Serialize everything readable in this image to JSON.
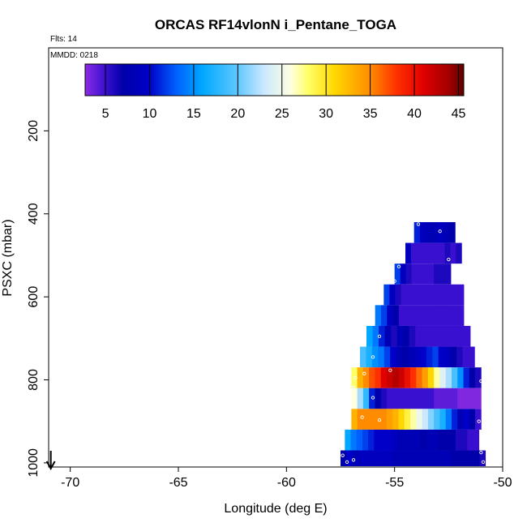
{
  "chart_data": {
    "type": "heatmap",
    "title": "ORCAS RF14vlonN i_Pentane_TOGA",
    "flights_label": "Flts: 14",
    "date_label": "MMDD: 0218",
    "xlabel": "Longitude (deg E)",
    "ylabel": "PSXC (mbar)",
    "xlim": [
      -71,
      -50
    ],
    "ylim": [
      1010,
      0
    ],
    "x_ticks": [
      -70,
      -65,
      -60,
      -55,
      -50
    ],
    "x_tick_labels": [
      "-70",
      "-65",
      "-60",
      "-55",
      "-50"
    ],
    "y_ticks": [
      200,
      400,
      600,
      800,
      1000
    ],
    "y_tick_labels": [
      "200",
      "400",
      "600",
      "800",
      "1000"
    ],
    "colorbar": {
      "min": 2.7,
      "max": 45.6,
      "ticks": [
        5,
        10,
        15,
        20,
        25,
        30,
        35,
        40,
        45
      ],
      "tick_labels": [
        "5",
        "10",
        "15",
        "20",
        "25",
        "30",
        "35",
        "40",
        "45"
      ],
      "stops": [
        {
          "v": 2.7,
          "c": "#8a2be2"
        },
        {
          "v": 5,
          "c": "#3a10d0"
        },
        {
          "v": 7,
          "c": "#0000aa"
        },
        {
          "v": 10,
          "c": "#0000c8"
        },
        {
          "v": 13,
          "c": "#0060ff"
        },
        {
          "v": 16,
          "c": "#00a8ff"
        },
        {
          "v": 20,
          "c": "#60c8ff"
        },
        {
          "v": 23,
          "c": "#cce8ff"
        },
        {
          "v": 26,
          "c": "#ffffe0"
        },
        {
          "v": 28,
          "c": "#ffff66"
        },
        {
          "v": 31,
          "c": "#ffd700"
        },
        {
          "v": 35,
          "c": "#ff8c00"
        },
        {
          "v": 38,
          "c": "#ff3000"
        },
        {
          "v": 41,
          "c": "#e00000"
        },
        {
          "v": 44,
          "c": "#a00000"
        },
        {
          "v": 45.6,
          "c": "#5a0000"
        }
      ]
    },
    "arrow_longitude": -70.9,
    "rows": [
      {
        "p_top": 420,
        "p_bot": 470,
        "lon_start": -54.1,
        "lon_end": -52.2,
        "values": [
          11,
          9,
          8,
          8,
          9,
          8,
          7
        ]
      },
      {
        "p_top": 470,
        "p_bot": 520,
        "lon_start": -54.5,
        "lon_end": -51.9,
        "values": [
          9,
          5,
          5,
          5,
          5,
          5,
          5,
          6,
          5,
          6
        ]
      },
      {
        "p_top": 520,
        "p_bot": 570,
        "lon_start": -55.0,
        "lon_end": -52.4,
        "values": [
          12,
          9,
          6,
          5,
          5,
          5,
          5,
          6,
          6,
          6
        ]
      },
      {
        "p_top": 570,
        "p_bot": 620,
        "lon_start": -55.5,
        "lon_end": -51.8,
        "values": [
          12,
          9,
          6,
          5,
          5,
          5,
          5,
          5,
          5,
          5,
          5,
          5,
          5,
          5
        ]
      },
      {
        "p_top": 620,
        "p_bot": 670,
        "lon_start": -55.9,
        "lon_end": -51.8,
        "values": [
          14,
          12,
          9,
          7,
          5,
          5,
          5,
          5,
          5,
          5,
          5,
          5,
          5,
          5,
          5
        ]
      },
      {
        "p_top": 670,
        "p_bot": 720,
        "lon_start": -56.3,
        "lon_end": -51.5,
        "values": [
          16,
          14,
          11,
          8,
          6,
          8,
          7,
          6,
          5,
          5,
          5,
          5,
          5,
          5,
          5,
          5,
          5
        ]
      },
      {
        "p_top": 720,
        "p_bot": 770,
        "lon_start": -56.6,
        "lon_end": -51.3,
        "values": [
          19,
          17,
          15,
          14,
          12,
          10,
          8,
          7,
          8,
          9,
          10,
          11,
          12,
          10,
          9,
          7,
          6,
          5,
          5
        ]
      },
      {
        "p_top": 770,
        "p_bot": 820,
        "lon_start": -57.0,
        "lon_end": -51.0,
        "values": [
          28,
          33,
          35,
          37,
          38,
          41,
          42,
          43,
          42,
          40,
          38,
          36,
          34,
          31,
          27,
          24,
          22,
          19,
          15,
          11,
          7,
          6
        ]
      },
      {
        "p_top": 820,
        "p_bot": 870,
        "lon_start": -57.0,
        "lon_end": -51.0,
        "values": [
          26,
          22,
          18,
          11,
          7,
          6,
          5,
          5,
          5,
          5,
          5,
          5,
          5,
          5,
          4,
          4,
          4,
          4,
          3,
          3,
          3,
          3
        ]
      },
      {
        "p_top": 870,
        "p_bot": 920,
        "lon_start": -57.0,
        "lon_end": -51.0,
        "values": [
          33,
          35,
          35,
          35,
          35,
          35,
          34,
          33,
          31,
          29,
          27,
          25,
          23,
          21,
          19,
          17,
          14,
          11,
          8,
          10,
          7,
          5
        ]
      },
      {
        "p_top": 920,
        "p_bot": 970,
        "lon_start": -57.3,
        "lon_end": -51.1,
        "values": [
          16,
          14,
          13,
          12,
          11,
          10,
          10,
          10,
          9,
          8,
          8,
          8,
          8,
          7,
          8,
          8,
          7,
          7,
          7,
          6,
          6,
          5,
          5
        ]
      },
      {
        "p_top": 970,
        "p_bot": 1020,
        "lon_start": -57.5,
        "lon_end": -50.8,
        "values": [
          7,
          10,
          8,
          9,
          9,
          9,
          9,
          9,
          9,
          8,
          8,
          8,
          8,
          8,
          8,
          8,
          8,
          8,
          8,
          7,
          7,
          7,
          7,
          7,
          6
        ]
      }
    ],
    "samples": [
      {
        "lon": -53.9,
        "p": 425
      },
      {
        "lon": -52.9,
        "p": 442
      },
      {
        "lon": -54.2,
        "p": 455
      },
      {
        "lon": -52.5,
        "p": 510
      },
      {
        "lon": -54.8,
        "p": 527
      },
      {
        "lon": -55.0,
        "p": 562
      },
      {
        "lon": -55.7,
        "p": 695
      },
      {
        "lon": -56.0,
        "p": 745
      },
      {
        "lon": -55.2,
        "p": 777
      },
      {
        "lon": -56.4,
        "p": 785
      },
      {
        "lon": -56.8,
        "p": 795
      },
      {
        "lon": -51.0,
        "p": 803
      },
      {
        "lon": -56.9,
        "p": 818
      },
      {
        "lon": -56.0,
        "p": 843
      },
      {
        "lon": -56.5,
        "p": 890
      },
      {
        "lon": -57.2,
        "p": 892
      },
      {
        "lon": -51.1,
        "p": 900
      },
      {
        "lon": -55.7,
        "p": 897
      },
      {
        "lon": -51.0,
        "p": 975
      },
      {
        "lon": -57.4,
        "p": 982
      },
      {
        "lon": -56.9,
        "p": 993
      },
      {
        "lon": -57.2,
        "p": 998
      },
      {
        "lon": -50.9,
        "p": 998
      }
    ]
  }
}
